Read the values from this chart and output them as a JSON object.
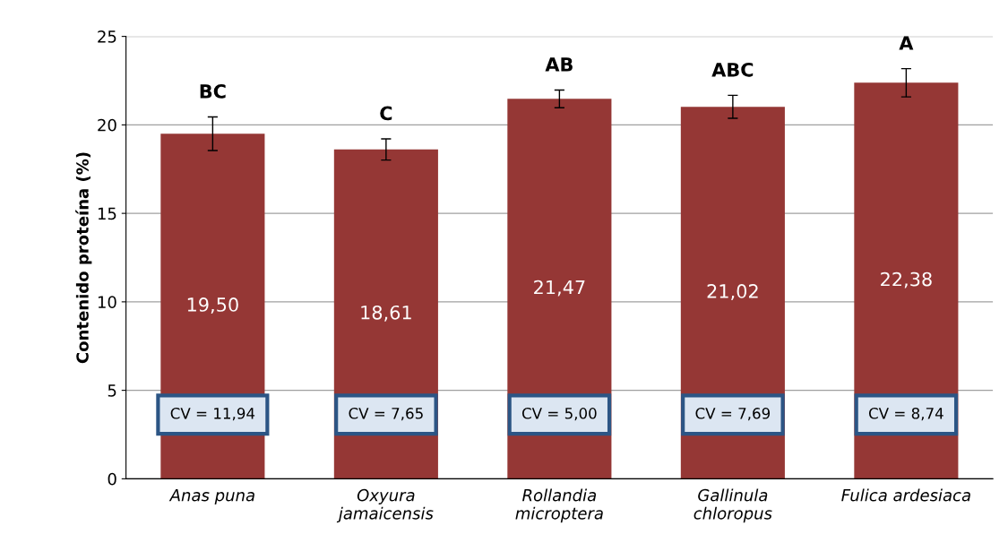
{
  "chart_data": {
    "type": "bar",
    "ylabel": "Contenido proteína (%)",
    "categories": [
      "Anas puna",
      "Oxyura\njamaicensis",
      "Rollandia\nmicroptera",
      "Gallinula\nchloropus",
      "Fulica ardesiaca"
    ],
    "values": [
      19.5,
      18.61,
      21.47,
      21.02,
      22.38
    ],
    "value_labels": [
      "19,50",
      "18,61",
      "21,47",
      "21,02",
      "22,38"
    ],
    "errors": [
      0.95,
      0.6,
      0.5,
      0.65,
      0.8
    ],
    "color": "#953735",
    "ylim": [
      0,
      25
    ],
    "yticks": [
      0,
      5,
      10,
      15,
      20,
      25
    ],
    "grid": "y",
    "annotations": [
      "BC",
      "C",
      "AB",
      "ABC",
      "A",
      "CV = 11,94",
      "CV = 7,65",
      "CV = 5,00",
      "CV = 7,69",
      "CV = 8,74"
    ]
  }
}
